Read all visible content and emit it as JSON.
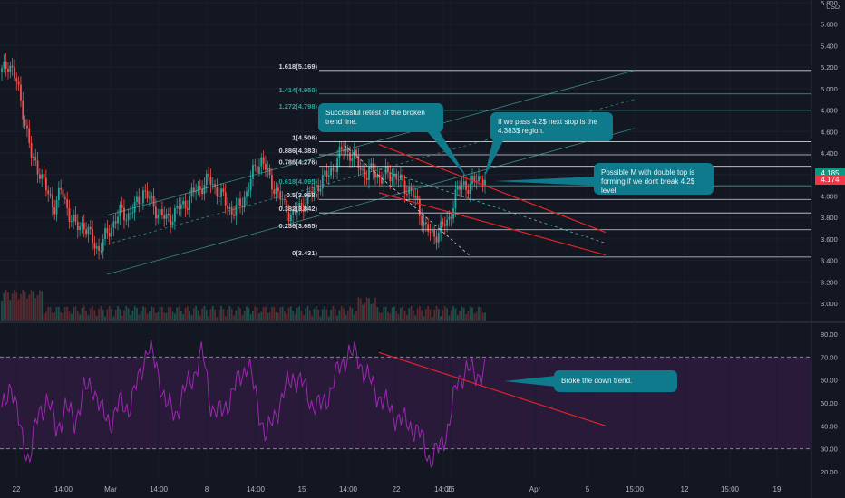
{
  "chart_data": [
    {
      "type": "candlestick",
      "title": "",
      "currency": "USD",
      "y_ticks": [
        "3.000",
        "3.200",
        "3.400",
        "3.600",
        "3.800",
        "4.000",
        "4.200",
        "4.400",
        "4.600",
        "4.800",
        "5.000",
        "5.200",
        "5.400",
        "5.600",
        "5.800"
      ],
      "ylim": [
        2.9,
        5.85
      ],
      "x_ticks": [
        "22",
        "14:00",
        "Mar",
        "14:00",
        "8",
        "14:00",
        "15",
        "14:00",
        "22",
        "14:00",
        "26",
        "Apr",
        "5",
        "15:00",
        "12",
        "15:00",
        "19"
      ],
      "price_tags": [
        {
          "value": "4.185",
          "color": "#089981"
        },
        {
          "value": "4.174",
          "color": "#f23645"
        }
      ],
      "fib_levels": [
        {
          "label": "1.618(5.169)",
          "price": 5.169
        },
        {
          "label": "1.414(4.950)",
          "price": 4.95
        },
        {
          "label": "1.272(4.798)",
          "price": 4.798
        },
        {
          "label": "1(4.506)",
          "price": 4.506
        },
        {
          "label": "0.886(4.383)",
          "price": 4.383
        },
        {
          "label": "0.786(4.276)",
          "price": 4.276
        },
        {
          "label": "0.618(4.095)",
          "price": 4.095
        },
        {
          "label": "0.5(3.968)",
          "price": 3.968
        },
        {
          "label": "0.382(3.842)",
          "price": 3.842
        },
        {
          "label": "0.236(3.685)",
          "price": 3.685
        },
        {
          "label": "0(3.431)",
          "price": 3.431
        }
      ],
      "price_path": [
        5.15,
        5.25,
        5.05,
        4.75,
        4.35,
        4.25,
        4.05,
        3.9,
        4.05,
        3.85,
        3.7,
        3.75,
        3.6,
        3.5,
        3.62,
        3.75,
        3.85,
        3.82,
        3.9,
        4.05,
        3.95,
        3.85,
        3.78,
        3.82,
        3.9,
        3.95,
        4.05,
        4.1,
        4.15,
        4.05,
        3.95,
        3.85,
        3.9,
        4.05,
        4.25,
        4.35,
        4.15,
        4.05,
        3.9,
        3.82,
        3.88,
        3.98,
        4.05,
        4.15,
        4.2,
        4.32,
        4.45,
        4.38,
        4.3,
        4.18,
        4.25,
        4.15,
        4.22,
        4.18,
        4.1,
        4.05,
        3.9,
        3.7,
        3.62,
        3.7,
        3.75,
        4.0,
        4.12,
        4.08,
        4.18,
        4.15
      ],
      "annotations": [
        "Successful retest of the broken trend line.",
        "If we pass 4.2$ next stop is the 4.383$ region.",
        "Possible M with double top is forming if we dont break 4.2$ level"
      ]
    },
    {
      "type": "line",
      "title": "",
      "y_ticks": [
        "80.00",
        "70.00",
        "60.00",
        "50.00",
        "40.00",
        "30.00",
        "20.00"
      ],
      "ylim": [
        17,
        84
      ],
      "bands": [
        70,
        30
      ],
      "rsi_path": [
        45,
        60,
        38,
        25,
        45,
        52,
        38,
        48,
        42,
        55,
        58,
        45,
        42,
        50,
        48,
        60,
        75,
        65,
        50,
        45,
        55,
        62,
        72,
        48,
        45,
        52,
        60,
        68,
        50,
        35,
        45,
        55,
        62,
        58,
        50,
        48,
        55,
        65,
        72,
        70,
        62,
        55,
        50,
        45,
        42,
        40,
        35,
        25,
        30,
        40,
        60,
        65,
        62,
        64
      ],
      "annotations": [
        "Broke the down trend."
      ]
    }
  ]
}
